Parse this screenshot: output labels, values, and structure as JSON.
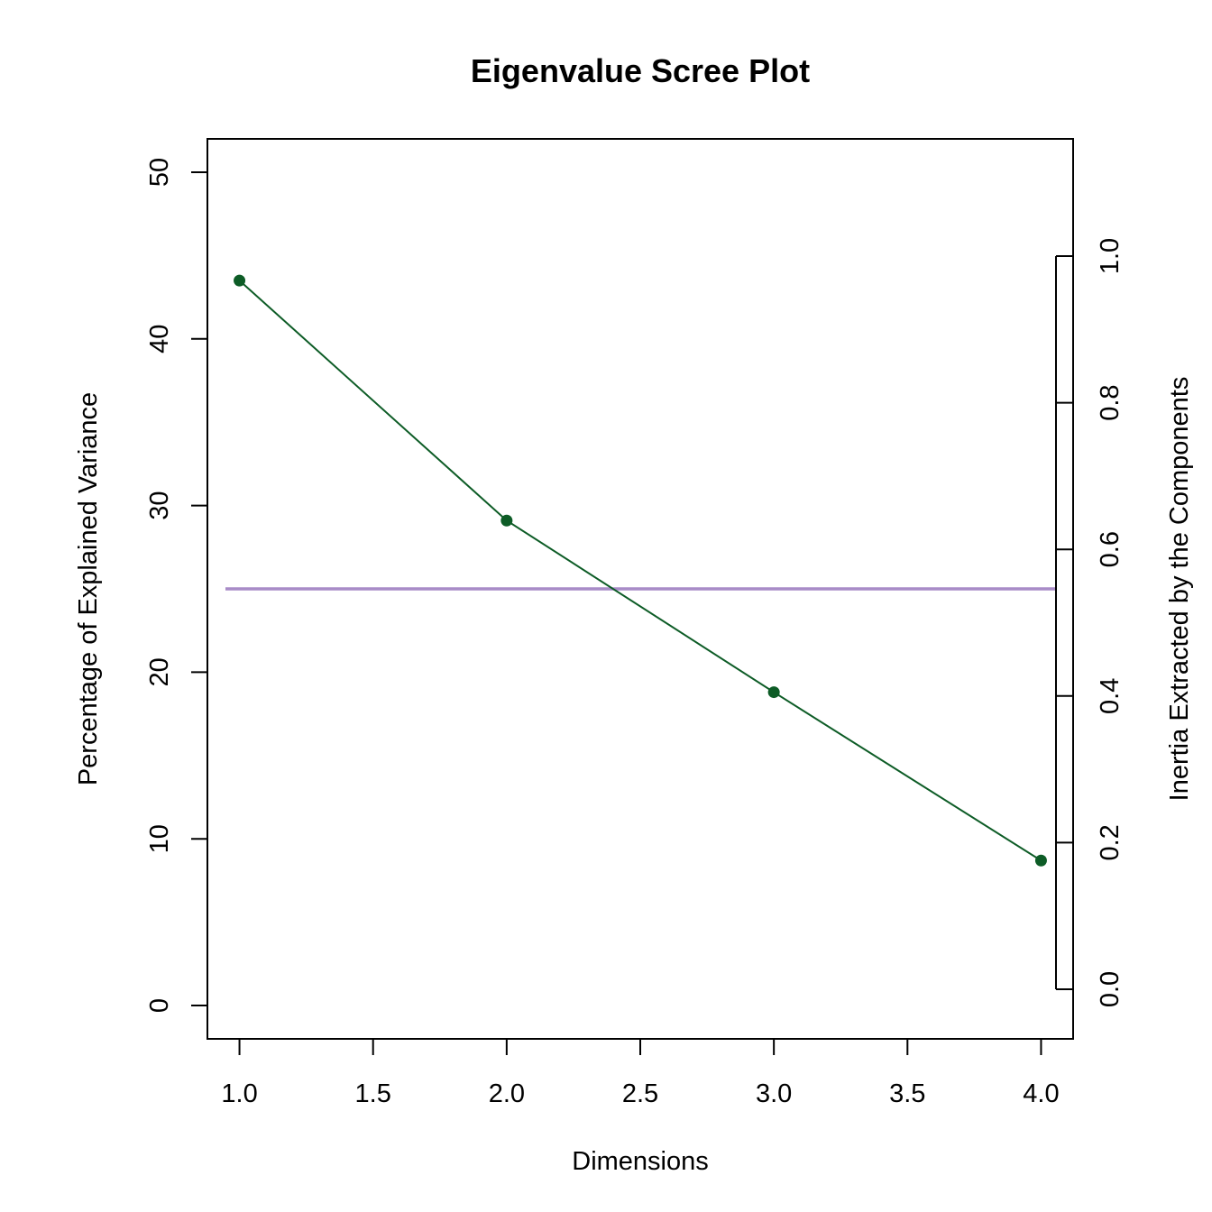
{
  "chart_data": {
    "type": "line",
    "title": "Eigenvalue Scree Plot",
    "xlabel": "Dimensions",
    "ylabel": "Percentage of Explained Variance",
    "y2label": "Inertia Extracted by the Components",
    "x": [
      1,
      2,
      3,
      4
    ],
    "series": [
      {
        "values": [
          43.5,
          29.1,
          18.8,
          8.7
        ]
      }
    ],
    "reference_line": {
      "y": 25
    },
    "xlim": [
      0.88,
      4.12
    ],
    "ylim": [
      -2,
      52
    ],
    "xticks": [
      "1.0",
      "1.5",
      "2.0",
      "2.5",
      "3.0",
      "3.5",
      "4.0"
    ],
    "yticks": [
      "0",
      "10",
      "20",
      "30",
      "40",
      "50"
    ],
    "y2ticks": [
      "0.0",
      "0.2",
      "0.4",
      "0.6",
      "0.8",
      "1.0"
    ],
    "grid": false,
    "colors": {
      "series": "#0d5c26",
      "reference": "#a88bc7"
    }
  }
}
